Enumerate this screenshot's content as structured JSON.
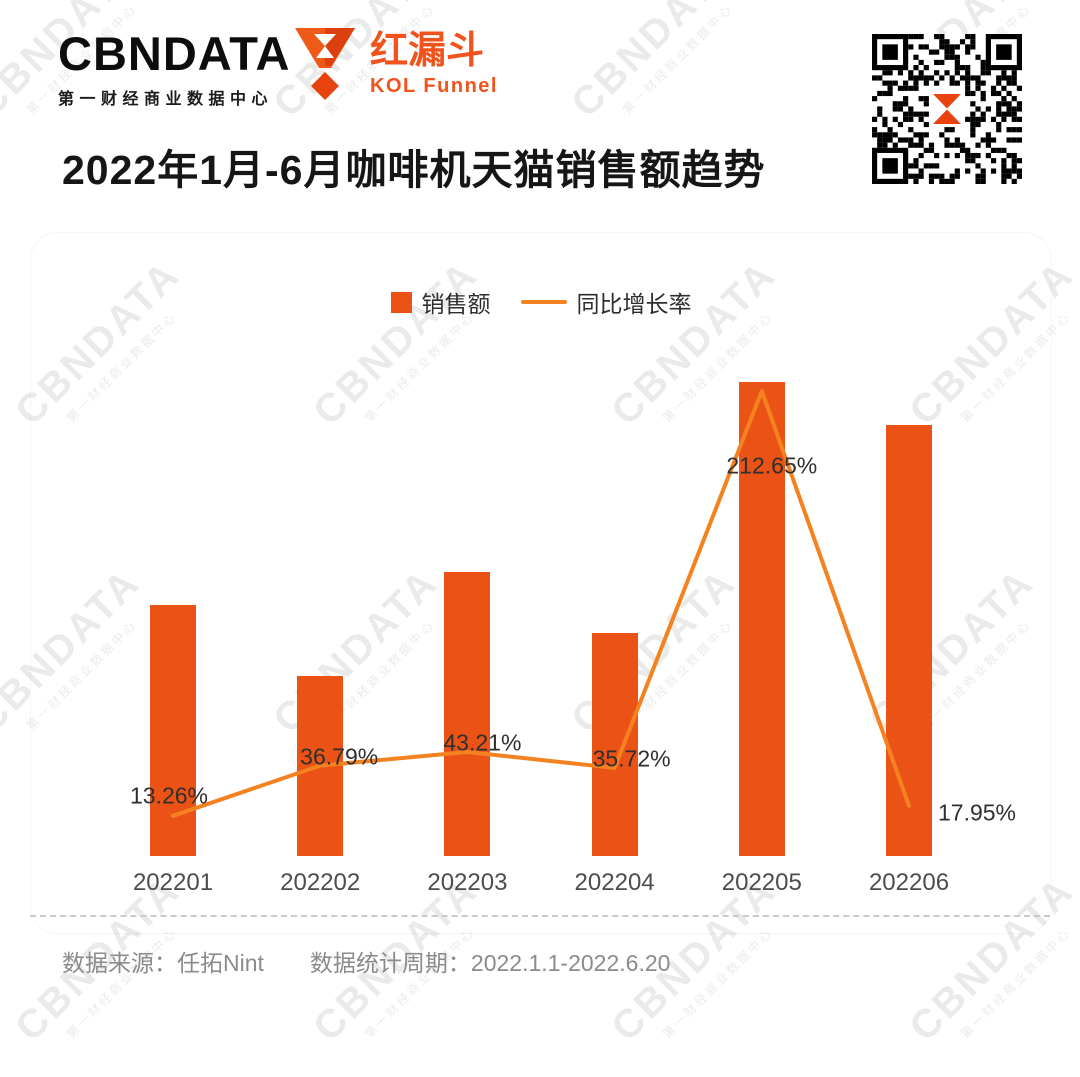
{
  "header": {
    "brand_name": "CBNDATA",
    "brand_subtitle": "第一财经商业数据中心",
    "kol_name": "红漏斗",
    "kol_subtitle": "KOL Funnel"
  },
  "title": "2022年1月-6月咖啡机天猫销售额趋势",
  "legend": {
    "bar_label": "销售额",
    "line_label": "同比增长率"
  },
  "chart_data": {
    "type": "bar",
    "combo": "bar+line",
    "title": "2022年1月-6月咖啡机天猫销售额趋势",
    "categories": [
      "202201",
      "202202",
      "202203",
      "202204",
      "202205",
      "202206"
    ],
    "series": [
      {
        "name": "销售额",
        "type": "bar",
        "unit": "percent of tallest bar (no value axis shown in figure)",
        "values": [
          53,
          38,
          60,
          47,
          100,
          91
        ],
        "color": "#EA5315"
      },
      {
        "name": "同比增长率",
        "type": "line",
        "unit": "%",
        "values": [
          13.26,
          36.79,
          43.21,
          35.72,
          212.65,
          17.95
        ],
        "labels": [
          "13.26%",
          "36.79%",
          "43.21%",
          "35.72%",
          "212.65%",
          "17.95%"
        ],
        "color": "#F58220"
      }
    ],
    "xlabel": "",
    "ylabel": "",
    "value_axis_visible": false,
    "grid": false,
    "legend_position": "top-center"
  },
  "footer": {
    "source": "数据来源：任拓Nint",
    "period": "数据统计周期：2022.1.1-2022.6.20"
  },
  "watermark": {
    "text": "CBNDATA",
    "subtext": "第一财经商业数据中心"
  },
  "colors": {
    "bar": "#EA5315",
    "line": "#F58220",
    "accent": "#F2521B",
    "title_text": "#161616",
    "footer_text": "#8B8B8B"
  }
}
